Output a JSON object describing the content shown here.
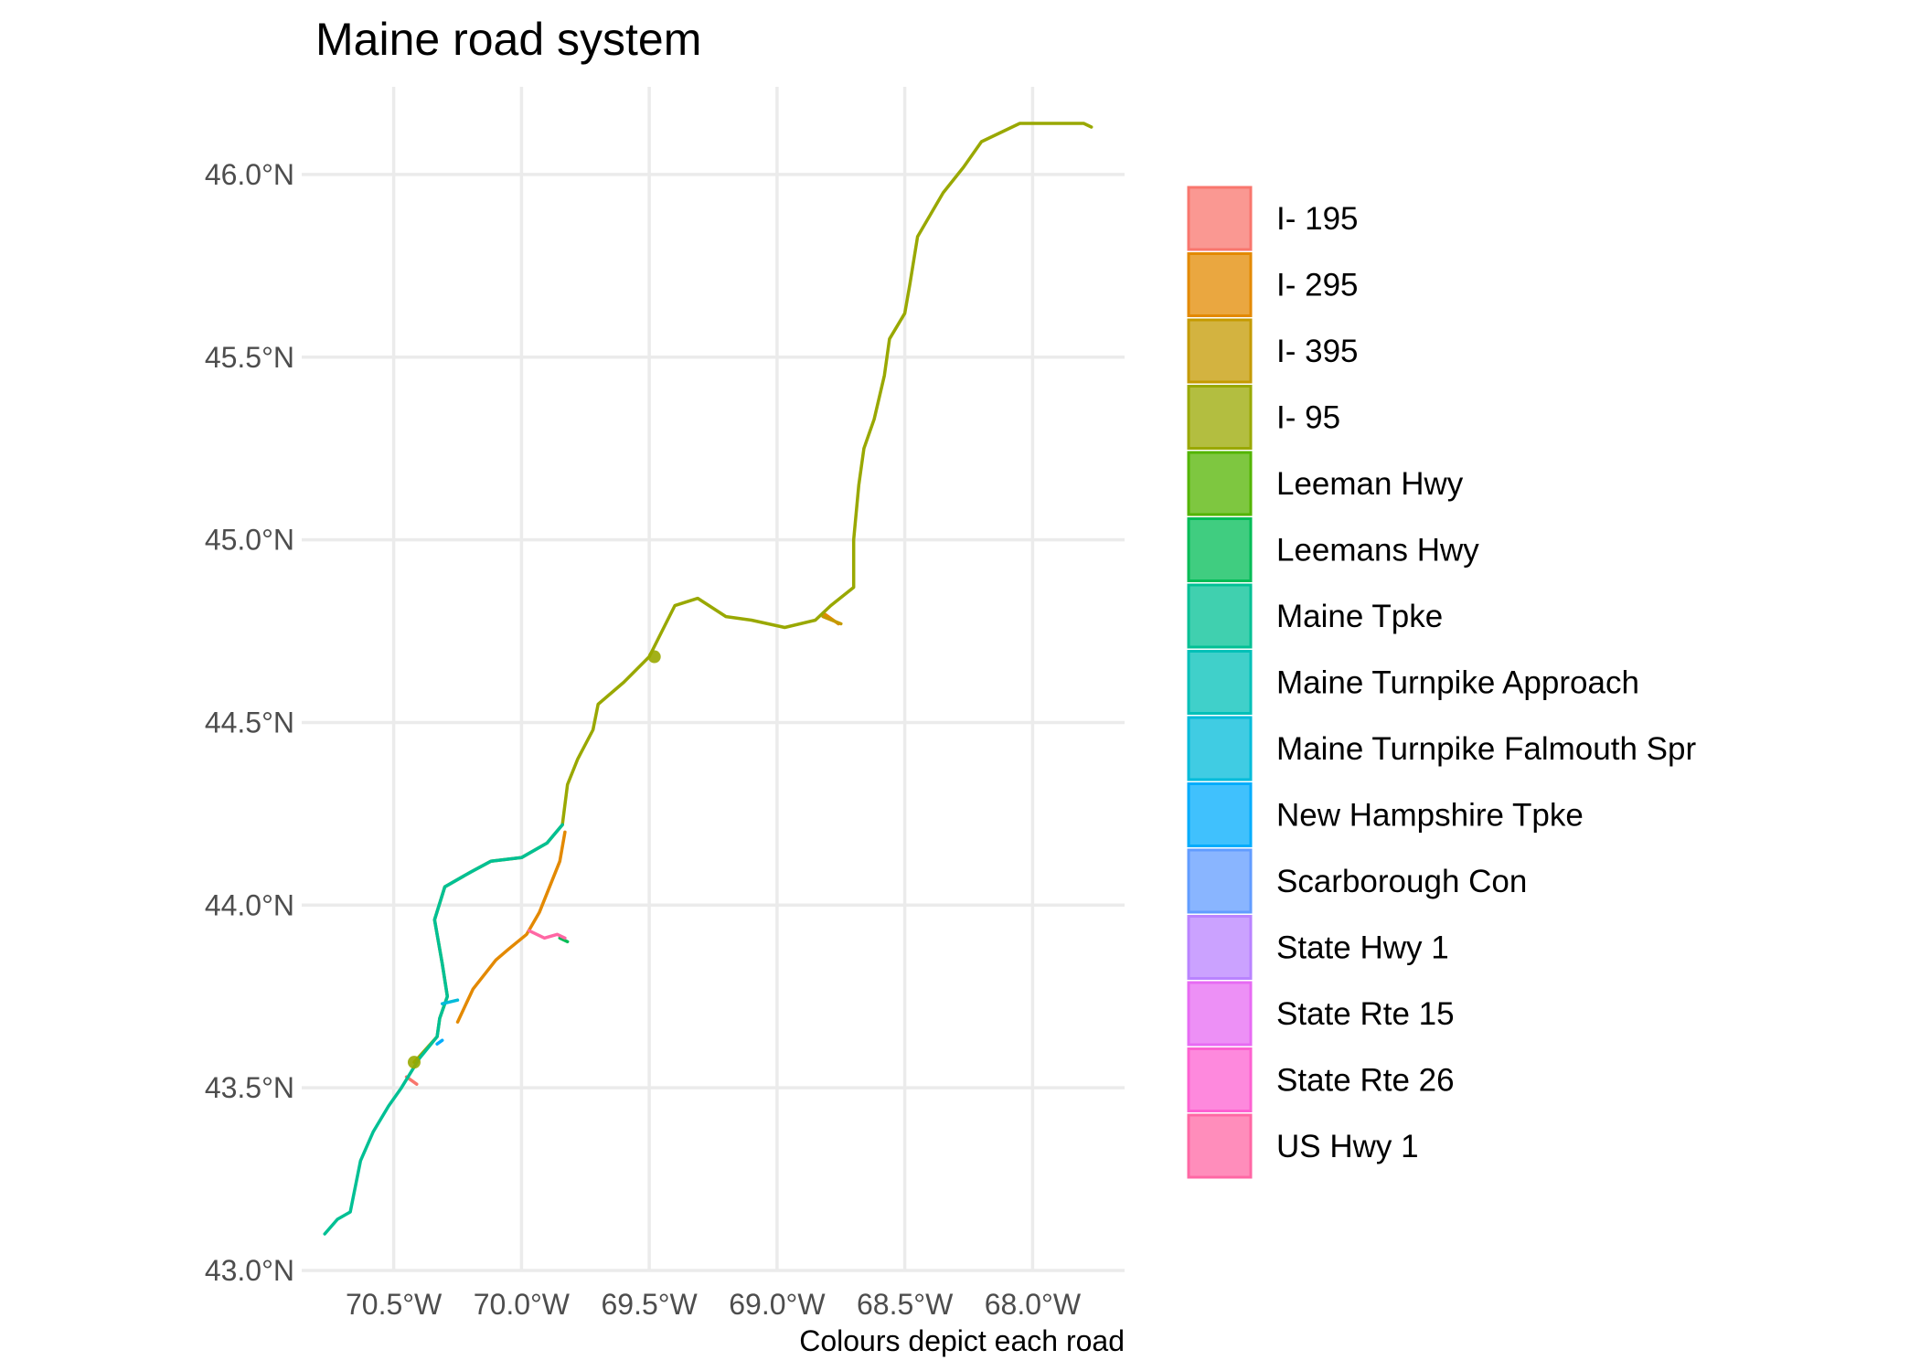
{
  "chart_data": {
    "type": "map",
    "title": "Maine road system",
    "caption": "Colours depict each road",
    "xlabel": "",
    "ylabel": "",
    "xlim": [
      -70.86,
      -67.64
    ],
    "ylim": [
      43.0,
      46.24
    ],
    "x_ticks": [
      {
        "value": -70.5,
        "label": "70.5°W"
      },
      {
        "value": -70.0,
        "label": "70.0°W"
      },
      {
        "value": -69.5,
        "label": "69.5°W"
      },
      {
        "value": -69.0,
        "label": "69.0°W"
      },
      {
        "value": -68.5,
        "label": "68.5°W"
      },
      {
        "value": -68.0,
        "label": "68.0°W"
      }
    ],
    "y_ticks": [
      {
        "value": 43.0,
        "label": "43.0°N"
      },
      {
        "value": 43.5,
        "label": "43.5°N"
      },
      {
        "value": 44.0,
        "label": "44.0°N"
      },
      {
        "value": 44.5,
        "label": "44.5°N"
      },
      {
        "value": 45.0,
        "label": "45.0°N"
      },
      {
        "value": 45.5,
        "label": "45.5°N"
      },
      {
        "value": 46.0,
        "label": "46.0°N"
      }
    ],
    "grid": true,
    "legend_position": "right",
    "series": [
      {
        "name": "I- 195",
        "color": "#F8766D",
        "paths": [
          [
            [
              -70.45,
              43.53
            ],
            [
              -70.41,
              43.51
            ]
          ]
        ],
        "points": []
      },
      {
        "name": "I- 295",
        "color": "#E38900",
        "paths": [
          [
            [
              -70.25,
              43.68
            ],
            [
              -70.19,
              43.77
            ],
            [
              -70.1,
              43.85
            ],
            [
              -70.05,
              43.88
            ],
            [
              -69.98,
              43.92
            ],
            [
              -69.93,
              43.98
            ],
            [
              -69.89,
              44.05
            ],
            [
              -69.85,
              44.12
            ],
            [
              -69.83,
              44.2
            ]
          ],
          [
            [
              -68.82,
              44.8
            ],
            [
              -68.76,
              44.77
            ]
          ]
        ],
        "points": []
      },
      {
        "name": "I- 395",
        "color": "#C49A00",
        "paths": [
          [
            [
              -68.82,
              44.79
            ],
            [
              -68.75,
              44.77
            ]
          ]
        ],
        "points": []
      },
      {
        "name": "I- 95",
        "color": "#99A800",
        "paths": [
          [
            [
              -70.42,
              43.57
            ],
            [
              -70.33,
              43.64
            ],
            [
              -70.32,
              43.69
            ],
            [
              -70.29,
              43.75
            ],
            [
              -70.31,
              43.84
            ],
            [
              -70.34,
              43.96
            ],
            [
              -70.3,
              44.05
            ],
            [
              -70.2,
              44.09
            ],
            [
              -70.12,
              44.12
            ],
            [
              -70.0,
              44.13
            ],
            [
              -69.9,
              44.17
            ],
            [
              -69.84,
              44.22
            ],
            [
              -69.82,
              44.33
            ],
            [
              -69.78,
              44.4
            ],
            [
              -69.72,
              44.48
            ],
            [
              -69.7,
              44.55
            ],
            [
              -69.65,
              44.58
            ],
            [
              -69.6,
              44.61
            ],
            [
              -69.5,
              44.68
            ],
            [
              -69.45,
              44.75
            ],
            [
              -69.4,
              44.82
            ],
            [
              -69.31,
              44.84
            ],
            [
              -69.2,
              44.79
            ],
            [
              -69.1,
              44.78
            ],
            [
              -68.97,
              44.76
            ],
            [
              -68.85,
              44.78
            ],
            [
              -68.79,
              44.82
            ],
            [
              -68.7,
              44.87
            ],
            [
              -68.7,
              45.0
            ],
            [
              -68.68,
              45.15
            ],
            [
              -68.66,
              45.25
            ],
            [
              -68.62,
              45.33
            ],
            [
              -68.58,
              45.45
            ],
            [
              -68.56,
              45.55
            ],
            [
              -68.5,
              45.62
            ],
            [
              -68.48,
              45.7
            ],
            [
              -68.45,
              45.83
            ],
            [
              -68.35,
              45.95
            ],
            [
              -68.27,
              46.02
            ],
            [
              -68.2,
              46.09
            ],
            [
              -68.05,
              46.14
            ],
            [
              -67.9,
              46.14
            ],
            [
              -67.8,
              46.14
            ],
            [
              -67.77,
              46.13
            ]
          ]
        ],
        "points": [
          [
            -70.42,
            43.57
          ],
          [
            -69.48,
            44.68
          ]
        ]
      },
      {
        "name": "Leeman Hwy",
        "color": "#53B400",
        "paths": [],
        "points": []
      },
      {
        "name": "Leemans Hwy",
        "color": "#00BC56",
        "paths": [
          [
            [
              -69.85,
              43.91
            ],
            [
              -69.82,
              43.9
            ]
          ]
        ],
        "points": []
      },
      {
        "name": "Maine Tpke",
        "color": "#00C094",
        "paths": [
          [
            [
              -70.77,
              43.1
            ],
            [
              -70.72,
              43.14
            ],
            [
              -70.67,
              43.16
            ],
            [
              -70.63,
              43.3
            ],
            [
              -70.58,
              43.38
            ],
            [
              -70.52,
              43.45
            ],
            [
              -70.47,
              43.5
            ],
            [
              -70.4,
              43.58
            ],
            [
              -70.33,
              43.64
            ],
            [
              -70.32,
              43.69
            ],
            [
              -70.29,
              43.75
            ],
            [
              -70.31,
              43.84
            ],
            [
              -70.34,
              43.96
            ],
            [
              -70.3,
              44.05
            ],
            [
              -70.2,
              44.09
            ],
            [
              -70.12,
              44.12
            ],
            [
              -70.0,
              44.13
            ],
            [
              -69.9,
              44.17
            ],
            [
              -69.84,
              44.22
            ]
          ]
        ],
        "points": []
      },
      {
        "name": "Maine Turnpike Approach",
        "color": "#00C0B8",
        "paths": [],
        "points": []
      },
      {
        "name": "Maine Turnpike Falmouth Spr",
        "color": "#00BBDA",
        "paths": [
          [
            [
              -70.31,
              43.73
            ],
            [
              -70.25,
              43.74
            ]
          ]
        ],
        "points": []
      },
      {
        "name": "New Hampshire Tpke",
        "color": "#00ACFC",
        "paths": [
          [
            [
              -70.33,
              43.62
            ],
            [
              -70.31,
              43.63
            ]
          ]
        ],
        "points": []
      },
      {
        "name": "Scarborough Con",
        "color": "#619CFF",
        "paths": [],
        "points": []
      },
      {
        "name": "State Hwy 1",
        "color": "#B983FF",
        "paths": [],
        "points": []
      },
      {
        "name": "State Rte 15",
        "color": "#E76BF3",
        "paths": [],
        "points": []
      },
      {
        "name": "State Rte 26",
        "color": "#FD61D1",
        "paths": [],
        "points": []
      },
      {
        "name": "US Hwy 1",
        "color": "#FF67A4",
        "paths": [
          [
            [
              -69.97,
              43.93
            ],
            [
              -69.91,
              43.91
            ],
            [
              -69.86,
              43.92
            ],
            [
              -69.83,
              43.91
            ]
          ]
        ],
        "points": []
      }
    ]
  }
}
